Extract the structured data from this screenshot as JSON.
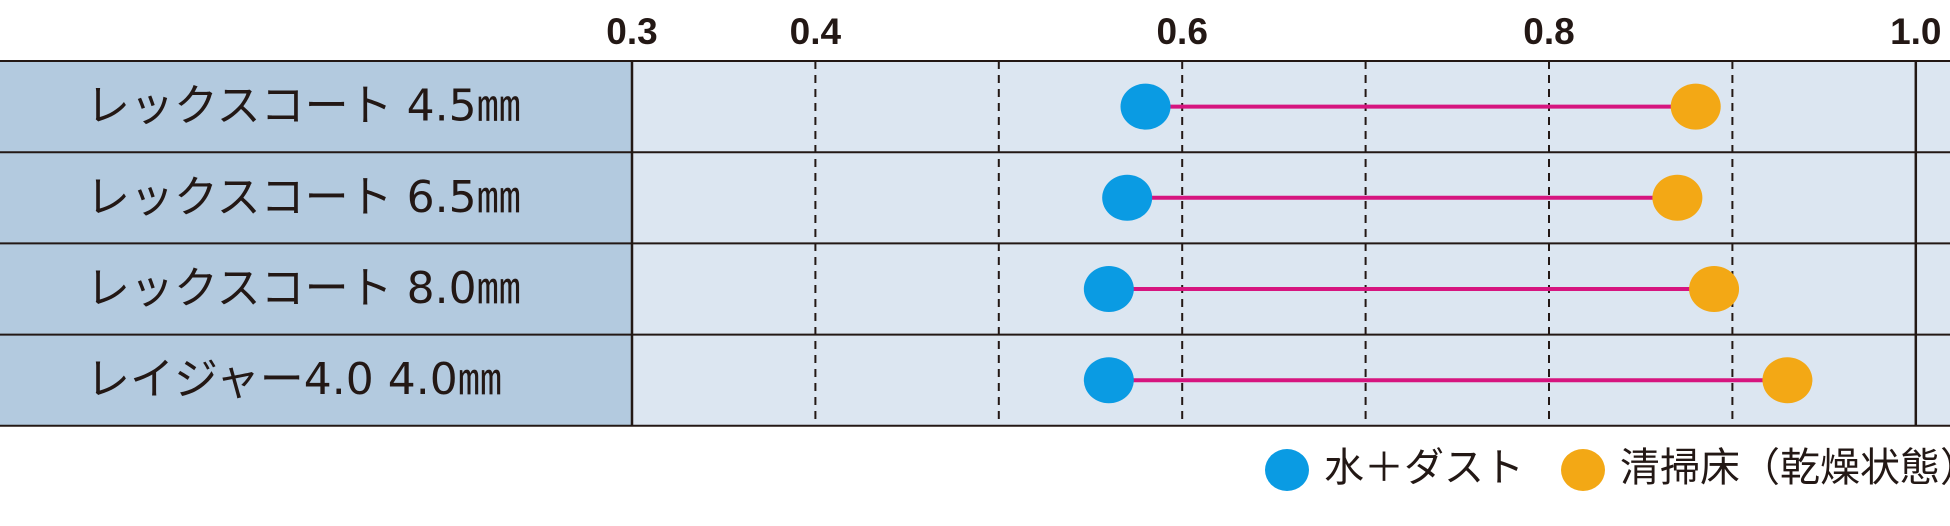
{
  "chart_data": {
    "type": "dumbbell",
    "categories": [
      "レックスコート 4.5㎜",
      "レックスコート 6.5㎜",
      "レックスコート 8.0㎜",
      "レイジャー4.0  4.0㎜"
    ],
    "series": [
      {
        "name": "水＋ダスト",
        "color": "#0a9be3",
        "values": [
          0.58,
          0.57,
          0.56,
          0.56
        ]
      },
      {
        "name": "清掃床（乾燥状態）",
        "color": "#f3a815",
        "values": [
          0.88,
          0.87,
          0.89,
          0.93
        ]
      }
    ],
    "connector_color": "#d6157f",
    "xlim": [
      0.3,
      1.0
    ],
    "xticks": [
      0.3,
      0.4,
      0.6,
      0.8,
      {
        "value": 1.0,
        "label": "1.0"
      }
    ],
    "minor_xticks": [
      0.5,
      0.7,
      0.9
    ],
    "grid": true
  }
}
